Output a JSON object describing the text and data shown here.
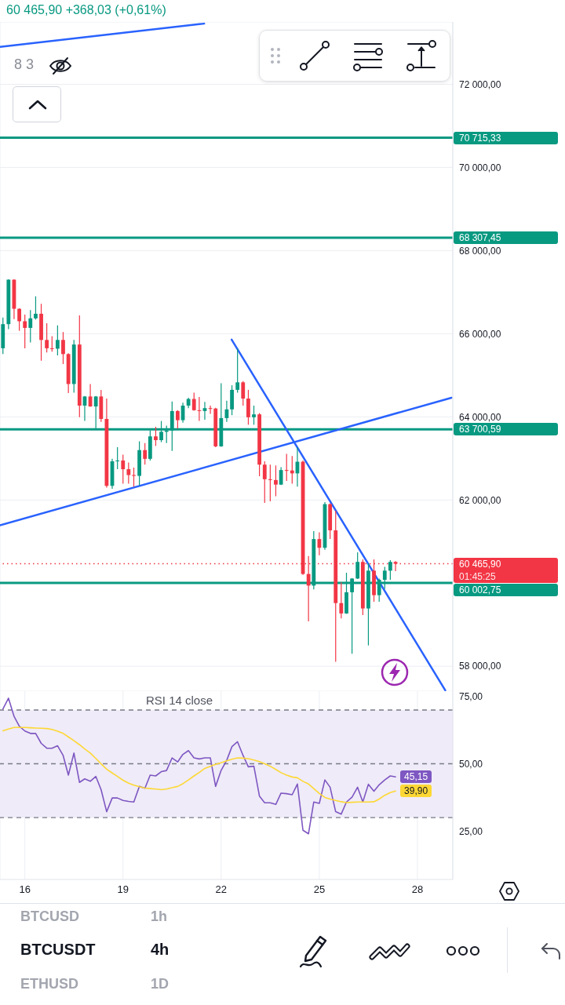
{
  "chart_data": [
    {
      "type": "candlestick",
      "title": "BTCUSDT",
      "subtitle": "4h",
      "annotations": [
        "60 465,90 +368,03 (+0,61%)",
        "8 3",
        "01:45:25",
        "BTCUSD",
        "1h",
        "ETHUSD",
        "1D"
      ],
      "x": [
        15.33,
        15.5,
        15.67,
        15.83,
        16,
        16.17,
        16.33,
        16.5,
        16.67,
        16.83,
        17,
        17.17,
        17.33,
        17.5,
        17.67,
        17.83,
        18,
        18.17,
        18.33,
        18.5,
        18.67,
        18.83,
        19,
        19.17,
        19.33,
        19.5,
        19.67,
        19.83,
        20,
        20.17,
        20.33,
        20.5,
        20.67,
        20.83,
        21,
        21.17,
        21.33,
        21.5,
        21.67,
        21.83,
        22,
        22.17,
        22.33,
        22.5,
        22.67,
        22.83,
        23,
        23.17,
        23.33,
        23.5,
        23.67,
        23.83,
        24,
        24.17,
        24.33,
        24.5,
        24.67,
        24.83,
        25,
        25.17,
        25.33,
        25.5,
        25.67,
        25.83,
        26,
        26.17,
        26.33,
        26.5,
        26.67,
        26.83,
        27,
        27.17,
        27.33
      ],
      "ohlc": [
        [
          65650,
          66390,
          65510,
          66230
        ],
        [
          66230,
          67310,
          66110,
          67300
        ],
        [
          67300,
          67310,
          66350,
          66600
        ],
        [
          66600,
          66610,
          66070,
          66300
        ],
        [
          66300,
          66460,
          65650,
          66140
        ],
        [
          66140,
          66570,
          65790,
          66370
        ],
        [
          66370,
          66900,
          66340,
          66480
        ],
        [
          66480,
          66720,
          65350,
          65850
        ],
        [
          65850,
          66250,
          65550,
          65650
        ],
        [
          65650,
          65940,
          65570,
          65640
        ],
        [
          65640,
          66200,
          65480,
          65850
        ],
        [
          65850,
          66040,
          65270,
          65510
        ],
        [
          65510,
          65530,
          64570,
          64790
        ],
        [
          64790,
          65850,
          64580,
          65740
        ],
        [
          65740,
          66440,
          63990,
          64270
        ],
        [
          64270,
          64500,
          63900,
          64490
        ],
        [
          64490,
          64790,
          64240,
          64250
        ],
        [
          64250,
          64500,
          63720,
          64490
        ],
        [
          64490,
          64650,
          63880,
          63950
        ],
        [
          63950,
          64440,
          62300,
          62340
        ],
        [
          62340,
          62990,
          62270,
          62930
        ],
        [
          62930,
          63270,
          62740,
          62950
        ],
        [
          62950,
          63090,
          62390,
          62740
        ],
        [
          62740,
          62900,
          62390,
          62600
        ],
        [
          62600,
          62780,
          62320,
          62580
        ],
        [
          62580,
          63410,
          62350,
          63200
        ],
        [
          63200,
          63370,
          62850,
          62990
        ],
        [
          62990,
          63670,
          62950,
          63530
        ],
        [
          63530,
          63760,
          63300,
          63440
        ],
        [
          63440,
          63900,
          63390,
          63640
        ],
        [
          63640,
          63790,
          63370,
          63670
        ],
        [
          63670,
          64370,
          63180,
          64140
        ],
        [
          64140,
          64160,
          63720,
          63920
        ],
        [
          63920,
          64340,
          63860,
          64270
        ],
        [
          64270,
          64460,
          64210,
          64430
        ],
        [
          64430,
          64580,
          64150,
          64160
        ],
        [
          64160,
          64480,
          63900,
          64140
        ],
        [
          64140,
          64360,
          63930,
          64210
        ],
        [
          64210,
          64270,
          64070,
          64200
        ],
        [
          64200,
          64220,
          63270,
          63290
        ],
        [
          63290,
          64810,
          63280,
          63970
        ],
        [
          63970,
          64390,
          63880,
          64180
        ],
        [
          64180,
          64760,
          64040,
          64650
        ],
        [
          64650,
          65640,
          64580,
          64830
        ],
        [
          64830,
          64860,
          64270,
          64440
        ],
        [
          64440,
          64650,
          63810,
          63990
        ],
        [
          63990,
          64270,
          63810,
          64060
        ],
        [
          64060,
          64090,
          62570,
          62850
        ],
        [
          62850,
          62930,
          61930,
          62500
        ],
        [
          62500,
          62850,
          61970,
          62480
        ],
        [
          62480,
          62830,
          62090,
          62370
        ],
        [
          62370,
          62790,
          62360,
          62720
        ],
        [
          62720,
          63110,
          62460,
          62710
        ],
        [
          62710,
          63060,
          62390,
          62640
        ],
        [
          62640,
          63270,
          62320,
          62920
        ],
        [
          62920,
          62950,
          60200,
          60220
        ],
        [
          60220,
          60650,
          59080,
          59940
        ],
        [
          59940,
          61250,
          59850,
          61060
        ],
        [
          61060,
          61220,
          60670,
          60850
        ],
        [
          60850,
          61950,
          60800,
          61900
        ],
        [
          61900,
          61920,
          61060,
          61270
        ],
        [
          61270,
          61740,
          58110,
          59520
        ],
        [
          59520,
          60020,
          59150,
          59270
        ],
        [
          59270,
          60250,
          59260,
          59780
        ],
        [
          59780,
          60120,
          58300,
          60110
        ],
        [
          60110,
          60740,
          60100,
          60510
        ],
        [
          60510,
          60570,
          59230,
          59390
        ],
        [
          59390,
          60480,
          58500,
          60300
        ],
        [
          60300,
          60570,
          59550,
          59710
        ],
        [
          59710,
          60110,
          59550,
          60080
        ],
        [
          60080,
          60390,
          59860,
          60300
        ],
        [
          60300,
          60550,
          60080,
          60510
        ],
        [
          60510,
          60530,
          60290,
          60465.9
        ]
      ],
      "colors": [
        "#089981",
        "#089981",
        "#f23645",
        "#f23645",
        "#f23645",
        "#089981",
        "#089981",
        "#f23645",
        "#f23645",
        "#f23645",
        "#089981",
        "#f23645",
        "#f23645",
        "#089981",
        "#f23645",
        "#089981",
        "#f23645",
        "#089981",
        "#f23645",
        "#f23645",
        "#089981",
        "#089981",
        "#f23645",
        "#f23645",
        "#f23645",
        "#089981",
        "#f23645",
        "#089981",
        "#f23645",
        "#089981",
        "#089981",
        "#089981",
        "#f23645",
        "#089981",
        "#089981",
        "#f23645",
        "#f23645",
        "#089981",
        "#f23645",
        "#f23645",
        "#089981",
        "#089981",
        "#089981",
        "#089981",
        "#f23645",
        "#f23645",
        "#089981",
        "#f23645",
        "#f23645",
        "#f23645",
        "#f23645",
        "#089981",
        "#f23645",
        "#f23645",
        "#089981",
        "#f23645",
        "#f23645",
        "#089981",
        "#f23645",
        "#089981",
        "#f23645",
        "#f23645",
        "#f23645",
        "#089981",
        "#089981",
        "#089981",
        "#f23645",
        "#089981",
        "#f23645",
        "#089981",
        "#089981",
        "#089981",
        "#f23645"
      ],
      "series": [
        {
          "type": "line",
          "color": "#2962ff",
          "x": [
            15.24,
            21.48
          ],
          "values": [
            72900,
            73460
          ]
        },
        {
          "type": "line",
          "color": "#2962ff",
          "x": [
            15.24,
            29.04
          ],
          "values": [
            61390,
            64460
          ]
        },
        {
          "type": "line",
          "color": "#2962ff",
          "x": [
            22.32,
            28.85
          ],
          "values": [
            65860,
            57420
          ]
        }
      ],
      "xlim": [
        15.24,
        29.08
      ],
      "xticks": [
        16,
        19,
        22,
        25,
        28
      ],
      "ylim": [
        57400,
        73500
      ],
      "yticks": [
        {
          "value": 58000,
          "label": "58 000,00"
        },
        {
          "value": 62000,
          "label": "62 000,00"
        },
        {
          "value": 64000,
          "label": "64 000,00"
        },
        {
          "value": 66000,
          "label": "66 000,00"
        },
        {
          "value": 68000,
          "label": "68 000,00"
        },
        {
          "value": 70000,
          "label": "70 000,00"
        },
        {
          "value": 72000,
          "label": "72 000,00"
        }
      ],
      "ref_lines": [
        {
          "axis": "y",
          "value": 70715.33,
          "label": "70 715,33",
          "color": "#089981"
        },
        {
          "axis": "y",
          "value": 68307.45,
          "label": "68 307,45",
          "color": "#089981"
        },
        {
          "axis": "y",
          "value": 63700.59,
          "label": "63 700,59",
          "color": "#089981"
        },
        {
          "axis": "y",
          "value": 60002.75,
          "label": "60 002,75",
          "color": "#089981"
        },
        {
          "axis": "y",
          "value": 60465.9,
          "label": "60 465,90",
          "color": "#f23645",
          "line_style": "dotted"
        }
      ],
      "grid": true,
      "tick_labels": "y"
    },
    {
      "type": "line",
      "title": "RSI 14 close",
      "x": [
        15.33,
        15.5,
        15.67,
        15.83,
        16,
        16.17,
        16.33,
        16.5,
        16.67,
        16.83,
        17,
        17.17,
        17.33,
        17.5,
        17.67,
        17.83,
        18,
        18.17,
        18.33,
        18.5,
        18.67,
        18.83,
        19,
        19.17,
        19.33,
        19.5,
        19.67,
        19.83,
        20,
        20.17,
        20.33,
        20.5,
        20.67,
        20.83,
        21,
        21.17,
        21.33,
        21.5,
        21.67,
        21.83,
        22,
        22.17,
        22.33,
        22.5,
        22.67,
        22.83,
        23,
        23.17,
        23.33,
        23.5,
        23.67,
        23.83,
        24,
        24.17,
        24.33,
        24.5,
        24.67,
        24.83,
        25,
        25.17,
        25.33,
        25.5,
        25.67,
        25.83,
        26,
        26.17,
        26.33,
        26.5,
        26.67,
        26.83,
        27,
        27.17,
        27.33
      ],
      "series": [
        {
          "color": "#7e57c2",
          "values": [
            70.4,
            74.4,
            67.6,
            64.0,
            62.2,
            61.3,
            61.3,
            57.6,
            55.8,
            55.8,
            56.7,
            53.1,
            45.8,
            54.0,
            43.1,
            44.4,
            43.5,
            45.3,
            40.4,
            32.2,
            37.3,
            37.3,
            36.4,
            36.0,
            35.8,
            41.6,
            40.9,
            45.8,
            45.5,
            47.1,
            47.5,
            52.2,
            50.7,
            53.5,
            54.9,
            52.2,
            51.8,
            52.2,
            52.2,
            41.6,
            47.6,
            51.3,
            56.4,
            58.2,
            53.1,
            48.9,
            49.1,
            38.0,
            35.5,
            35.5,
            34.9,
            39.1,
            38.9,
            38.5,
            42.5,
            25.3,
            24.0,
            35.8,
            35.3,
            44.0,
            41.3,
            32.2,
            31.3,
            35.8,
            37.6,
            41.3,
            35.8,
            42.4,
            39.8,
            42.2,
            44.0,
            45.5,
            45.15
          ],
          "value_labels": [
            null,
            null,
            null,
            null,
            null,
            null,
            null,
            null,
            null,
            null,
            null,
            null,
            null,
            null,
            null,
            null,
            null,
            null,
            null,
            null,
            null,
            null,
            null,
            null,
            null,
            null,
            null,
            null,
            null,
            null,
            null,
            null,
            null,
            null,
            null,
            null,
            null,
            null,
            null,
            null,
            null,
            null,
            null,
            null,
            null,
            null,
            null,
            null,
            null,
            null,
            null,
            null,
            null,
            null,
            null,
            null,
            null,
            null,
            null,
            null,
            null,
            null,
            null,
            null,
            null,
            null,
            null,
            null,
            null,
            null,
            null,
            null,
            "45,15"
          ]
        },
        {
          "color": "#fdd835",
          "values": [
            62.3,
            62.9,
            63.5,
            63.5,
            63.5,
            63.4,
            63.3,
            63.2,
            63.1,
            62.8,
            62.1,
            61.3,
            60.0,
            58.6,
            57.1,
            55.5,
            54.0,
            52.0,
            50.0,
            48.0,
            46.6,
            45.3,
            43.9,
            42.8,
            42.1,
            41.5,
            41.0,
            40.8,
            40.6,
            40.4,
            40.6,
            41.1,
            41.6,
            42.6,
            44.0,
            45.5,
            46.8,
            48.3,
            49.1,
            49.8,
            50.4,
            51.1,
            51.7,
            52.2,
            52.1,
            51.9,
            51.4,
            50.8,
            50.0,
            49.1,
            47.9,
            46.7,
            45.8,
            45.1,
            44.8,
            43.5,
            42.5,
            40.8,
            39.0,
            37.5,
            36.9,
            36.4,
            35.9,
            35.6,
            35.7,
            35.8,
            35.8,
            35.8,
            35.9,
            36.9,
            38.3,
            39.3,
            39.9
          ],
          "value_labels": [
            null,
            null,
            null,
            null,
            null,
            null,
            null,
            null,
            null,
            null,
            null,
            null,
            null,
            null,
            null,
            null,
            null,
            null,
            null,
            null,
            null,
            null,
            null,
            null,
            null,
            null,
            null,
            null,
            null,
            null,
            null,
            null,
            null,
            null,
            null,
            null,
            null,
            null,
            null,
            null,
            null,
            null,
            null,
            null,
            null,
            null,
            null,
            null,
            null,
            null,
            null,
            null,
            null,
            null,
            null,
            null,
            null,
            null,
            null,
            null,
            null,
            null,
            null,
            null,
            null,
            null,
            null,
            null,
            null,
            null,
            null,
            null,
            "39,90"
          ]
        }
      ],
      "xlim": [
        15.24,
        29.08
      ],
      "xticks": [
        16,
        19,
        22,
        25,
        28
      ],
      "ylim": [
        7,
        77
      ],
      "yticks": [
        {
          "value": 25,
          "label": "25,00"
        },
        {
          "value": 50,
          "label": "50,00"
        },
        {
          "value": 75,
          "label": "75,00"
        }
      ],
      "ref_lines": [
        {
          "axis": "y",
          "value": 70,
          "color": "#787b86",
          "line_style": "dashed"
        },
        {
          "axis": "y",
          "value": 50,
          "color": "#787b86",
          "line_style": "dashed"
        },
        {
          "axis": "y",
          "value": 30,
          "color": "#787b86",
          "line_style": "dashed"
        }
      ],
      "bands": [
        {
          "axis": "y",
          "from": 30,
          "to": 70,
          "color": "#efebf8"
        }
      ],
      "grid": "x"
    }
  ]
}
